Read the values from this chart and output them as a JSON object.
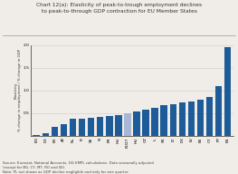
{
  "title_line1": "Chart 12(a): Elasticity of peak-to-trough employment declines",
  "title_line2": "to peak-to-through GDP contraction for EU Member States",
  "ylabel": "Elasticity\n% change in employment / % change in GDP",
  "source_text": "Source: Eurostat, National Accounts, DG EMPL calculations. Data seasonally adjusted\n(except for BG, CY, MT, RO and SE).\nNote: PL not shown as GDP decline negligible and only for one quarter.",
  "labels": [
    "EO",
    "DE",
    "BE",
    "AT",
    "NL",
    "FI",
    "SE",
    "SI",
    "FR",
    "HU",
    "EU27",
    "HU",
    "CZ",
    "IL",
    "SK",
    "LT",
    "DK",
    "LV",
    "EE",
    "CY",
    "PT",
    "ES"
  ],
  "values": [
    0.02,
    0.05,
    0.2,
    0.25,
    0.37,
    0.38,
    0.4,
    0.41,
    0.43,
    0.45,
    0.5,
    0.54,
    0.57,
    0.62,
    0.67,
    0.7,
    0.73,
    0.76,
    0.8,
    0.85,
    1.1,
    1.95
  ],
  "bar_color_main": "#1e5c99",
  "bar_color_highlight": "#a8b8d4",
  "highlight_index": 10,
  "ylim": [
    0,
    2.0
  ],
  "yticks": [
    0.5,
    1.0,
    1.5,
    2.0
  ],
  "background_color": "#f0ede8",
  "title_color": "#333333",
  "grid_color": "#cccccc",
  "title_fontsize": 4.2,
  "label_fontsize": 3.2,
  "ylabel_fontsize": 2.9,
  "source_fontsize": 2.8
}
